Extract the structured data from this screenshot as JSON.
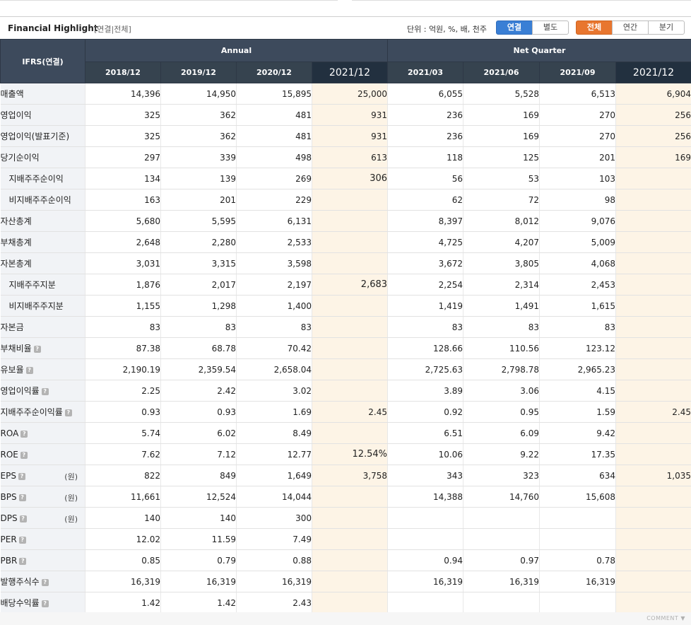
{
  "header": {
    "title": "Financial Highlight",
    "subtitle": "[연결|전체]",
    "unit_label": "단위 : 억원, %, 배, 천주",
    "scope_buttons": [
      "연결",
      "별도"
    ],
    "period_buttons": [
      "전체",
      "연간",
      "분기"
    ]
  },
  "table": {
    "corner_label": "IFRS(연결)",
    "group_annual": "Annual",
    "group_quarter": "Net Quarter",
    "columns": [
      "2018/12",
      "2019/12",
      "2020/12",
      "2021/12",
      "2021/03",
      "2021/06",
      "2021/09",
      "2021/12"
    ],
    "rows": [
      {
        "label": "매출액",
        "values": [
          "14,396",
          "14,950",
          "15,895",
          "25,000",
          "6,055",
          "5,528",
          "6,513",
          "6,904"
        ]
      },
      {
        "label": "영업이익",
        "values": [
          "325",
          "362",
          "481",
          "931",
          "236",
          "169",
          "270",
          "256"
        ]
      },
      {
        "label": "영업이익(발표기준)",
        "values": [
          "325",
          "362",
          "481",
          "931",
          "236",
          "169",
          "270",
          "256"
        ]
      },
      {
        "label": "당기순이익",
        "values": [
          "297",
          "339",
          "498",
          "613",
          "118",
          "125",
          "201",
          "169"
        ]
      },
      {
        "label": "지배주주순이익",
        "values": [
          "134",
          "139",
          "269",
          "306",
          "56",
          "53",
          "103",
          ""
        ]
      },
      {
        "label": "비지배주주순이익",
        "values": [
          "163",
          "201",
          "229",
          "",
          "62",
          "72",
          "98",
          ""
        ]
      },
      {
        "label": "자산총계",
        "values": [
          "5,680",
          "5,595",
          "6,131",
          "",
          "8,397",
          "8,012",
          "9,076",
          ""
        ]
      },
      {
        "label": "부채총계",
        "values": [
          "2,648",
          "2,280",
          "2,533",
          "",
          "4,725",
          "4,207",
          "5,009",
          ""
        ]
      },
      {
        "label": "자본총계",
        "values": [
          "3,031",
          "3,315",
          "3,598",
          "",
          "3,672",
          "3,805",
          "4,068",
          ""
        ]
      },
      {
        "label": "지배주주지분",
        "values": [
          "1,876",
          "2,017",
          "2,197",
          "2,683",
          "2,254",
          "2,314",
          "2,453",
          ""
        ]
      },
      {
        "label": "비지배주주지분",
        "values": [
          "1,155",
          "1,298",
          "1,400",
          "",
          "1,419",
          "1,491",
          "1,615",
          ""
        ]
      },
      {
        "label": "자본금",
        "values": [
          "83",
          "83",
          "83",
          "",
          "83",
          "83",
          "83",
          ""
        ]
      },
      {
        "label": "부채비율",
        "values": [
          "87.38",
          "68.78",
          "70.42",
          "",
          "128.66",
          "110.56",
          "123.12",
          ""
        ]
      },
      {
        "label": "유보율",
        "values": [
          "2,190.19",
          "2,359.54",
          "2,658.04",
          "",
          "2,725.63",
          "2,798.78",
          "2,965.23",
          ""
        ]
      },
      {
        "label": "영업이익률",
        "values": [
          "2.25",
          "2.42",
          "3.02",
          "",
          "3.89",
          "3.06",
          "4.15",
          ""
        ]
      },
      {
        "label": "지배주주순이익률",
        "values": [
          "0.93",
          "0.93",
          "1.69",
          "2.45",
          "0.92",
          "0.95",
          "1.59",
          "2.45"
        ]
      },
      {
        "label": "ROA",
        "values": [
          "5.74",
          "6.02",
          "8.49",
          "",
          "6.51",
          "6.09",
          "9.42",
          ""
        ]
      },
      {
        "label": "ROE",
        "values": [
          "7.62",
          "7.12",
          "12.77",
          "12.54%",
          "10.06",
          "9.22",
          "17.35",
          ""
        ]
      },
      {
        "label": "EPS",
        "unit": "(원)",
        "values": [
          "822",
          "849",
          "1,649",
          "3,758",
          "343",
          "323",
          "634",
          "1,035"
        ]
      },
      {
        "label": "BPS",
        "unit": "(원)",
        "values": [
          "11,661",
          "12,524",
          "14,044",
          "",
          "14,388",
          "14,760",
          "15,608",
          ""
        ]
      },
      {
        "label": "DPS",
        "unit": "(원)",
        "values": [
          "140",
          "140",
          "300",
          "",
          "",
          "",
          "",
          ""
        ]
      },
      {
        "label": "PER",
        "values": [
          "12.02",
          "11.59",
          "7.49",
          "",
          "",
          "",
          "",
          ""
        ]
      },
      {
        "label": "PBR",
        "values": [
          "0.85",
          "0.79",
          "0.88",
          "",
          "0.94",
          "0.97",
          "0.78",
          ""
        ]
      },
      {
        "label": "발행주식수",
        "values": [
          "16,319",
          "16,319",
          "16,319",
          "",
          "16,319",
          "16,319",
          "16,319",
          ""
        ]
      },
      {
        "label": "배당수익률",
        "values": [
          "1.42",
          "1.42",
          "2.43",
          "",
          "",
          "",
          "",
          ""
        ]
      }
    ]
  },
  "footer": {
    "comment_label": "COMMENT ▼"
  },
  "colors": {
    "header_dark": "#3d4a5c",
    "estimate_bg": "#fdf4e6",
    "blue_button": "#3a7fd5",
    "orange_button": "#e8762f"
  }
}
